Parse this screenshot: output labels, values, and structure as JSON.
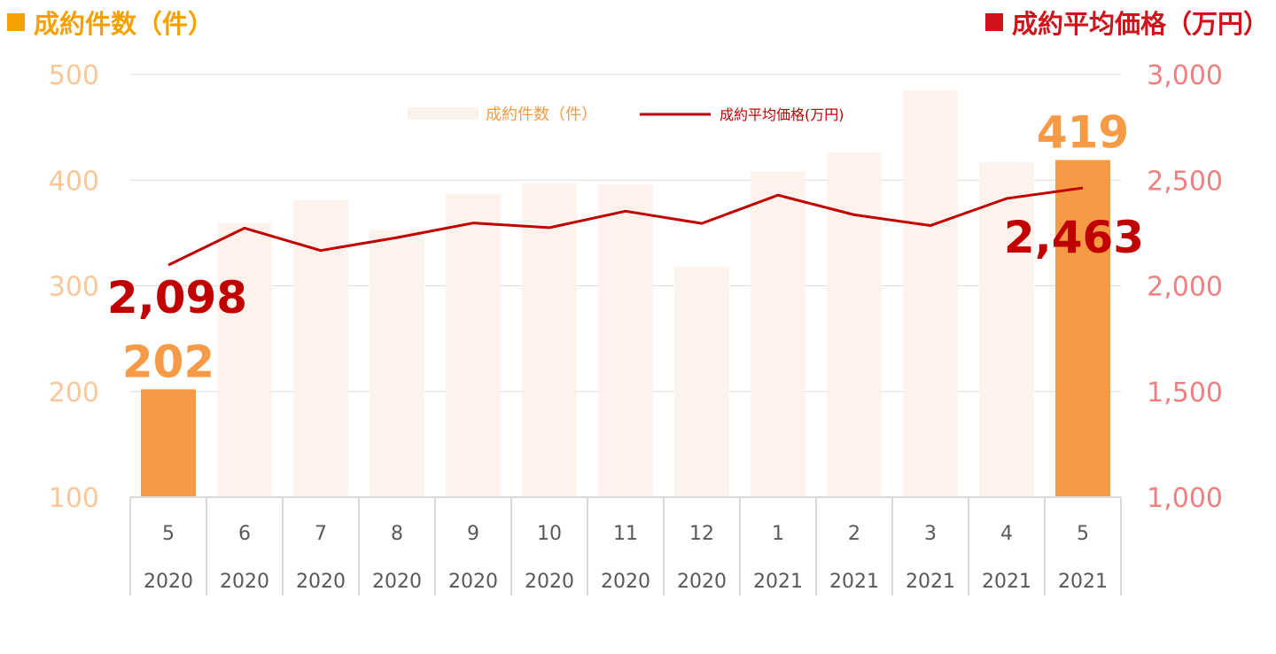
{
  "header": {
    "left_title": "成約件数（件）",
    "right_title": "成約平均価格（万円）",
    "left_color": "#F5A000",
    "right_color": "#D0121B"
  },
  "chart_data": {
    "type": "bar",
    "categories": [
      "5",
      "6",
      "7",
      "8",
      "9",
      "10",
      "11",
      "12",
      "1",
      "2",
      "3",
      "4",
      "5"
    ],
    "years": [
      "2020",
      "2020",
      "2020",
      "2020",
      "2020",
      "2020",
      "2020",
      "2020",
      "2021",
      "2021",
      "2021",
      "2021",
      "2021"
    ],
    "series": [
      {
        "name": "成約件数（件）",
        "type": "bar",
        "axis": "left",
        "values": [
          202,
          359,
          381,
          353,
          387,
          397,
          396,
          318,
          408,
          426,
          485,
          417,
          419
        ],
        "highlight_indices": [
          0,
          12
        ],
        "color": "#FDF3EC",
        "highlight_color": "#F79A45"
      },
      {
        "name": "成約平均価格(万円)",
        "type": "line",
        "axis": "right",
        "values": [
          2098,
          2273,
          2167,
          2228,
          2297,
          2275,
          2353,
          2295,
          2429,
          2336,
          2285,
          2413,
          2463
        ],
        "color": "#C00000"
      }
    ],
    "y_left": {
      "min": 100,
      "max": 500,
      "ticks": [
        100,
        200,
        300,
        400,
        500
      ],
      "color": "#F9C79A"
    },
    "y_right": {
      "min": 1000,
      "max": 3000,
      "ticks": [
        "1,000",
        "1,500",
        "2,000",
        "2,500",
        "3,000"
      ],
      "color": "#F08080"
    },
    "data_labels": {
      "bar_first": "202",
      "bar_last": "419",
      "line_first": "2,098",
      "line_last": "2,463"
    },
    "legend": {
      "placement": "top-center"
    },
    "grid": true
  }
}
